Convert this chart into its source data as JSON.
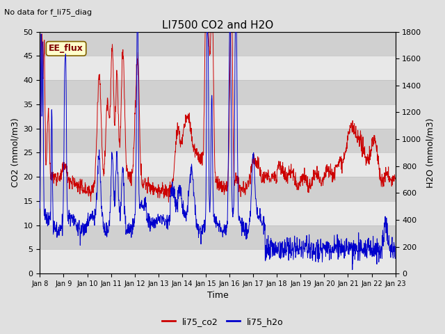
{
  "title": "LI7500 CO2 and H2O",
  "subtitle": "No data for f_li75_diag",
  "xlabel": "Time",
  "ylabel_left": "CO2 (mmol/m3)",
  "ylabel_right": "H2O (mmol/m3)",
  "ylim_left": [
    0,
    50
  ],
  "ylim_right": [
    0,
    1800
  ],
  "yticks_left": [
    0,
    5,
    10,
    15,
    20,
    25,
    30,
    35,
    40,
    45,
    50
  ],
  "yticks_right": [
    0,
    200,
    400,
    600,
    800,
    1000,
    1200,
    1400,
    1600,
    1800
  ],
  "xtick_labels": [
    "Jan 8",
    "Jan 9",
    "Jan 10",
    "Jan 11",
    "Jan 12",
    "Jan 13",
    "Jan 14",
    "Jan 15",
    "Jan 16",
    "Jan 17",
    "Jan 18",
    "Jan 19",
    "Jan 20",
    "Jan 21",
    "Jan 22",
    "Jan 23"
  ],
  "legend_label_box": "EE_flux",
  "legend_co2": "li75_co2",
  "legend_h2o": "li75_h2o",
  "color_co2": "#cc0000",
  "color_h2o": "#0000cc",
  "bg_color": "#e0e0e0",
  "plot_bg_color": "#d8d8d8",
  "band_light": "#e8e8e8",
  "band_dark": "#d0d0d0",
  "grid_line_color": "#c0c0c0",
  "ee_flux_text_color": "#800000",
  "ee_flux_bg_color": "#ffffcc",
  "ee_flux_edge_color": "#806000"
}
